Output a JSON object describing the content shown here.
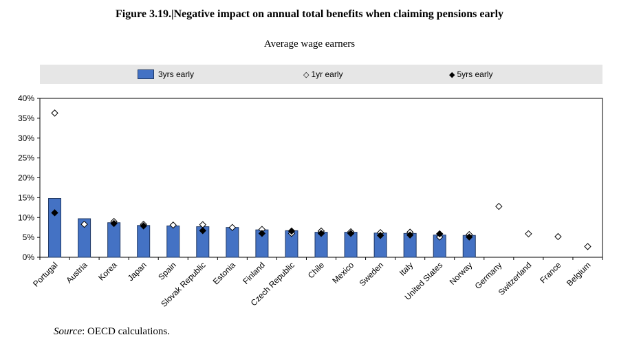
{
  "title": "Figure 3.19.|Negative impact on annual total benefits when claiming pensions early",
  "subtitle": "Average wage earners",
  "source": {
    "label": "Source",
    "text": ": OECD calculations."
  },
  "legend": {
    "bar_label": "3yrs early",
    "hollow_label": "1yr early",
    "hollow_marker": "◇",
    "solid_label": "5yrs early",
    "solid_marker": "◆"
  },
  "colors": {
    "bar": "#4472c4",
    "bar_border": "#1f3864",
    "legend_bg": "#e6e6e6"
  },
  "chart_data": {
    "type": "bar",
    "title": "",
    "xlabel": "",
    "ylabel": "",
    "ylim": [
      0,
      40
    ],
    "yticks": [
      "0%",
      "5%",
      "10%",
      "15%",
      "20%",
      "25%",
      "30%",
      "35%",
      "40%"
    ],
    "grid": false,
    "legend_position": "top",
    "categories": [
      "Portugal",
      "Austria",
      "Korea",
      "Japan",
      "Spain",
      "Slovak Republic",
      "Estonia",
      "Finland",
      "Czech Republic",
      "Chile",
      "Mexico",
      "Sweden",
      "Italy",
      "United States",
      "Norway",
      "Germany",
      "Switzerland",
      "France",
      "Belgium"
    ],
    "series": [
      {
        "name": "3yrs early",
        "kind": "bar",
        "values": [
          14.8,
          9.7,
          8.7,
          8.0,
          7.9,
          7.7,
          7.5,
          6.9,
          6.7,
          6.3,
          6.3,
          6.1,
          6.0,
          5.6,
          5.5,
          null,
          null,
          null,
          null
        ]
      },
      {
        "name": "1yr early",
        "kind": "hollow-diamond",
        "values": [
          36.3,
          8.3,
          9.0,
          8.3,
          8.1,
          8.2,
          7.5,
          7.0,
          6.0,
          6.6,
          6.4,
          6.2,
          6.3,
          5.1,
          5.7,
          12.8,
          5.9,
          5.2,
          2.7
        ]
      },
      {
        "name": "5yrs early",
        "kind": "solid-diamond",
        "values": [
          11.2,
          null,
          8.5,
          7.9,
          null,
          6.7,
          null,
          6.0,
          6.6,
          6.0,
          6.0,
          5.5,
          5.6,
          5.9,
          5.1,
          null,
          null,
          null,
          null
        ]
      }
    ]
  }
}
